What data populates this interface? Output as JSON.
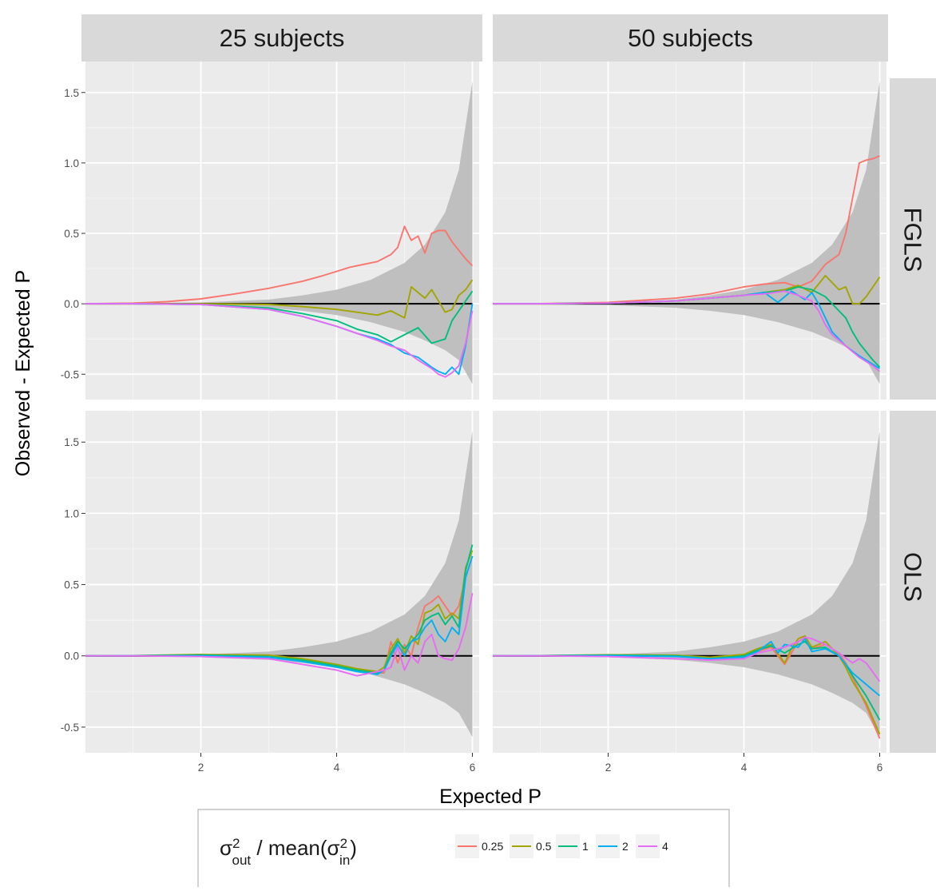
{
  "chart_data": {
    "type": "line",
    "xlabel": "Expected P",
    "ylabel": "Observed - Expected P",
    "xlim": [
      0.3,
      6.1
    ],
    "ylim": [
      -0.68,
      1.72
    ],
    "x_ticks": [
      {
        "value": 2,
        "label": "2"
      },
      {
        "value": 4,
        "label": "4"
      },
      {
        "value": 6,
        "label": "6"
      }
    ],
    "y_ticks": [
      {
        "value": -0.5,
        "label": "-0.5"
      },
      {
        "value": 0.0,
        "label": "0.0"
      },
      {
        "value": 0.5,
        "label": "0.5"
      },
      {
        "value": 1.0,
        "label": "1.0"
      },
      {
        "value": 1.5,
        "label": "1.5"
      }
    ],
    "column_facets": [
      "25 subjects",
      "50 subjects"
    ],
    "row_facets": [
      "FGLS",
      "OLS"
    ],
    "legend": {
      "title": {
        "sigma": "σ",
        "sup": "2",
        "sub_out": "out",
        "middle": " / mean(σ",
        "sub_in": "in",
        "close": ")"
      },
      "placement": "bottom",
      "entries": [
        {
          "label": "0.25",
          "color": "#F8766D"
        },
        {
          "label": "0.5",
          "color": "#A3A500"
        },
        {
          "label": "1",
          "color": "#00BF7D"
        },
        {
          "label": "2",
          "color": "#00B0F6"
        },
        {
          "label": "4",
          "color": "#E76BF3"
        }
      ]
    },
    "band": {
      "color": "#bfbfbf",
      "x": [
        0.3,
        1,
        2,
        3,
        3.5,
        4,
        4.5,
        5,
        5.3,
        5.6,
        5.8,
        6
      ],
      "upper": [
        0.0,
        0.003,
        0.01,
        0.03,
        0.06,
        0.1,
        0.17,
        0.29,
        0.42,
        0.65,
        0.95,
        1.58
      ],
      "lower": [
        0.0,
        -0.003,
        -0.01,
        -0.028,
        -0.05,
        -0.08,
        -0.13,
        -0.2,
        -0.26,
        -0.33,
        -0.4,
        -0.57
      ]
    },
    "reference_line": {
      "y": 0,
      "color": "#000000"
    },
    "panels": [
      {
        "column": "25 subjects",
        "row": "FGLS",
        "series": [
          {
            "name": "0.25",
            "x": [
              0.3,
              1,
              1.5,
              2,
              2.5,
              3,
              3.5,
              3.8,
              4,
              4.2,
              4.4,
              4.6,
              4.8,
              4.9,
              5.0,
              5.1,
              5.2,
              5.3,
              5.4,
              5.5,
              5.6,
              5.7,
              5.8,
              5.9,
              6.0
            ],
            "y": [
              0,
              0.005,
              0.015,
              0.035,
              0.07,
              0.11,
              0.16,
              0.2,
              0.23,
              0.26,
              0.28,
              0.3,
              0.35,
              0.4,
              0.55,
              0.45,
              0.48,
              0.36,
              0.5,
              0.52,
              0.52,
              0.44,
              0.38,
              0.32,
              0.27
            ]
          },
          {
            "name": "0.5",
            "x": [
              0.3,
              1,
              2,
              3,
              3.5,
              4,
              4.3,
              4.6,
              4.8,
              5.0,
              5.1,
              5.3,
              5.4,
              5.6,
              5.7,
              5.8,
              5.9,
              6.0
            ],
            "y": [
              0,
              0,
              0,
              -0.005,
              -0.02,
              -0.04,
              -0.06,
              -0.08,
              -0.05,
              -0.1,
              0.12,
              0.04,
              0.1,
              -0.06,
              -0.04,
              0.06,
              0.1,
              0.17
            ]
          },
          {
            "name": "1",
            "x": [
              0.3,
              1,
              2,
              3,
              3.5,
              4,
              4.3,
              4.6,
              4.8,
              5.0,
              5.2,
              5.4,
              5.6,
              5.7,
              5.8,
              5.9,
              6.0
            ],
            "y": [
              0,
              0,
              -0.005,
              -0.03,
              -0.07,
              -0.12,
              -0.18,
              -0.22,
              -0.27,
              -0.22,
              -0.17,
              -0.28,
              -0.25,
              -0.12,
              -0.05,
              0.02,
              0.09
            ]
          },
          {
            "name": "2",
            "x": [
              0.3,
              1,
              2,
              3,
              3.5,
              4,
              4.3,
              4.6,
              4.8,
              5.0,
              5.2,
              5.4,
              5.5,
              5.6,
              5.7,
              5.8,
              5.9,
              6.0
            ],
            "y": [
              0,
              0,
              -0.005,
              -0.04,
              -0.09,
              -0.16,
              -0.21,
              -0.25,
              -0.29,
              -0.35,
              -0.38,
              -0.45,
              -0.48,
              -0.5,
              -0.45,
              -0.5,
              -0.3,
              0.0
            ]
          },
          {
            "name": "4",
            "x": [
              0.3,
              1,
              2,
              3,
              3.5,
              4,
              4.3,
              4.6,
              4.8,
              5.0,
              5.2,
              5.4,
              5.5,
              5.6,
              5.7,
              5.8,
              5.9,
              6.0
            ],
            "y": [
              0,
              0,
              -0.005,
              -0.04,
              -0.09,
              -0.16,
              -0.21,
              -0.26,
              -0.3,
              -0.33,
              -0.4,
              -0.46,
              -0.5,
              -0.52,
              -0.49,
              -0.44,
              -0.28,
              -0.05
            ]
          }
        ]
      },
      {
        "column": "50 subjects",
        "row": "FGLS",
        "series": [
          {
            "name": "0.25",
            "x": [
              0.3,
              1,
              2,
              3,
              3.5,
              4,
              4.3,
              4.6,
              4.8,
              5.0,
              5.2,
              5.4,
              5.5,
              5.6,
              5.7,
              5.8,
              5.9,
              6.0
            ],
            "y": [
              0,
              0.001,
              0.01,
              0.04,
              0.07,
              0.12,
              0.14,
              0.15,
              0.12,
              0.16,
              0.28,
              0.35,
              0.5,
              0.75,
              1.0,
              1.02,
              1.03,
              1.05
            ]
          },
          {
            "name": "0.5",
            "x": [
              0.3,
              1,
              2,
              3,
              3.5,
              4,
              4.3,
              4.6,
              4.8,
              5.0,
              5.2,
              5.4,
              5.5,
              5.6,
              5.7,
              5.8,
              5.9,
              6.0
            ],
            "y": [
              0,
              0,
              0.005,
              0.02,
              0.04,
              0.06,
              0.08,
              0.1,
              0.13,
              0.08,
              0.2,
              0.1,
              0.12,
              0.0,
              0.0,
              0.05,
              0.12,
              0.19
            ]
          },
          {
            "name": "1",
            "x": [
              0.3,
              1,
              2,
              3,
              3.5,
              4,
              4.3,
              4.6,
              4.8,
              5.0,
              5.2,
              5.4,
              5.5,
              5.6,
              5.7,
              5.8,
              5.9,
              6.0
            ],
            "y": [
              0,
              0,
              0.005,
              0.02,
              0.04,
              0.06,
              0.08,
              0.09,
              0.12,
              0.1,
              0.05,
              -0.05,
              -0.1,
              -0.2,
              -0.28,
              -0.34,
              -0.4,
              -0.45
            ]
          },
          {
            "name": "2",
            "x": [
              0.3,
              1,
              2,
              3,
              3.5,
              4,
              4.3,
              4.5,
              4.7,
              4.9,
              5.0,
              5.1,
              5.2,
              5.3,
              5.5,
              5.7,
              5.9,
              6.0
            ],
            "y": [
              0,
              0,
              0.005,
              0.02,
              0.04,
              0.06,
              0.08,
              0.01,
              0.09,
              0.03,
              0.08,
              0.0,
              -0.1,
              -0.2,
              -0.3,
              -0.37,
              -0.43,
              -0.46
            ]
          },
          {
            "name": "4",
            "x": [
              0.3,
              1,
              2,
              3,
              3.5,
              4,
              4.3,
              4.6,
              4.8,
              5.0,
              5.1,
              5.2,
              5.3,
              5.5,
              5.7,
              5.9,
              6.0
            ],
            "y": [
              0,
              0,
              0.005,
              0.02,
              0.04,
              0.06,
              0.07,
              0.09,
              0.06,
              0.02,
              -0.05,
              -0.15,
              -0.22,
              -0.3,
              -0.38,
              -0.44,
              -0.48
            ]
          }
        ]
      },
      {
        "column": "25 subjects",
        "row": "OLS",
        "series": [
          {
            "name": "0.25",
            "x": [
              0.3,
              1,
              2,
              3,
              3.5,
              4,
              4.3,
              4.6,
              4.7,
              4.8,
              4.9,
              5.0,
              5.1,
              5.2,
              5.3,
              5.4,
              5.5,
              5.6,
              5.7,
              5.8,
              5.9,
              6.0
            ],
            "y": [
              0,
              0.002,
              0.005,
              0.0,
              -0.03,
              -0.07,
              -0.1,
              -0.12,
              -0.12,
              0.1,
              -0.05,
              0.08,
              0.0,
              0.2,
              0.35,
              0.38,
              0.42,
              0.35,
              0.28,
              0.35,
              0.55,
              0.7
            ]
          },
          {
            "name": "0.5",
            "x": [
              0.3,
              1,
              2,
              3,
              3.5,
              4,
              4.3,
              4.6,
              4.7,
              4.8,
              4.9,
              5.0,
              5.1,
              5.2,
              5.3,
              5.4,
              5.5,
              5.6,
              5.7,
              5.8,
              5.9,
              6.0
            ],
            "y": [
              0,
              0.002,
              0.01,
              0.005,
              -0.02,
              -0.06,
              -0.09,
              -0.11,
              -0.08,
              0.05,
              0.12,
              0.02,
              0.14,
              0.08,
              0.3,
              0.32,
              0.36,
              0.26,
              0.3,
              0.26,
              0.62,
              0.74
            ]
          },
          {
            "name": "1",
            "x": [
              0.3,
              1,
              2,
              3,
              3.5,
              4,
              4.3,
              4.6,
              4.7,
              4.8,
              4.9,
              5.0,
              5.1,
              5.2,
              5.3,
              5.4,
              5.5,
              5.6,
              5.7,
              5.8,
              5.9,
              6.0
            ],
            "y": [
              0,
              0.001,
              0.005,
              -0.005,
              -0.03,
              -0.07,
              -0.1,
              -0.12,
              -0.1,
              0.02,
              0.1,
              0.05,
              0.1,
              0.15,
              0.25,
              0.28,
              0.3,
              0.22,
              0.28,
              0.2,
              0.6,
              0.78
            ]
          },
          {
            "name": "2",
            "x": [
              0.3,
              1,
              2,
              3,
              3.5,
              4,
              4.3,
              4.6,
              4.7,
              4.8,
              4.9,
              5.0,
              5.1,
              5.2,
              5.3,
              5.4,
              5.5,
              5.6,
              5.7,
              5.8,
              5.9,
              6.0
            ],
            "y": [
              0,
              0.001,
              0.0,
              -0.01,
              -0.04,
              -0.08,
              -0.11,
              -0.13,
              -0.1,
              0.0,
              0.08,
              0.0,
              0.1,
              0.12,
              0.2,
              0.25,
              0.15,
              0.1,
              0.2,
              0.15,
              0.55,
              0.7
            ]
          },
          {
            "name": "4",
            "x": [
              0.3,
              1,
              2,
              3,
              3.5,
              4,
              4.3,
              4.6,
              4.7,
              4.8,
              4.9,
              5.0,
              5.1,
              5.2,
              5.3,
              5.4,
              5.5,
              5.6,
              5.7,
              5.8,
              5.9,
              6.0
            ],
            "y": [
              0,
              0.0,
              -0.005,
              -0.02,
              -0.06,
              -0.1,
              -0.14,
              -0.11,
              -0.1,
              -0.08,
              0.06,
              -0.1,
              0.0,
              -0.05,
              0.1,
              0.15,
              0.0,
              -0.02,
              -0.03,
              0.05,
              0.2,
              0.44
            ]
          }
        ]
      },
      {
        "column": "50 subjects",
        "row": "OLS",
        "series": [
          {
            "name": "0.25",
            "x": [
              0.3,
              1,
              2,
              3,
              3.5,
              4,
              4.2,
              4.4,
              4.6,
              4.8,
              4.9,
              5.0,
              5.2,
              5.4,
              5.5,
              5.6,
              5.8,
              6.0
            ],
            "y": [
              0,
              0.002,
              0.005,
              0.0,
              -0.02,
              0.0,
              0.03,
              0.06,
              -0.06,
              0.1,
              0.12,
              0.05,
              0.08,
              0.02,
              -0.05,
              -0.15,
              -0.35,
              -0.58
            ]
          },
          {
            "name": "0.5",
            "x": [
              0.3,
              1,
              2,
              3,
              3.5,
              4,
              4.2,
              4.4,
              4.6,
              4.7,
              4.8,
              4.9,
              5.0,
              5.2,
              5.4,
              5.5,
              5.6,
              5.8,
              6.0
            ],
            "y": [
              0,
              0.002,
              0.008,
              0.004,
              -0.01,
              0.01,
              0.05,
              0.08,
              -0.05,
              0.05,
              0.12,
              0.14,
              0.06,
              0.1,
              0.0,
              -0.08,
              -0.18,
              -0.33,
              -0.55
            ]
          },
          {
            "name": "1",
            "x": [
              0.3,
              1,
              2,
              3,
              3.5,
              4,
              4.2,
              4.4,
              4.6,
              4.8,
              4.9,
              5.0,
              5.2,
              5.4,
              5.5,
              5.6,
              5.8,
              6.0
            ],
            "y": [
              0,
              0.001,
              0.005,
              0.0,
              -0.02,
              0.0,
              0.04,
              0.07,
              0.02,
              0.08,
              0.1,
              0.05,
              0.06,
              0.0,
              -0.06,
              -0.14,
              -0.28,
              -0.45
            ]
          },
          {
            "name": "2",
            "x": [
              0.3,
              1,
              2,
              3,
              3.5,
              4,
              4.2,
              4.4,
              4.5,
              4.6,
              4.8,
              4.9,
              5.0,
              5.2,
              5.4,
              5.6,
              5.8,
              6.0
            ],
            "y": [
              0,
              0.001,
              0.002,
              -0.005,
              -0.02,
              -0.01,
              0.03,
              0.1,
              0.02,
              0.08,
              0.06,
              0.12,
              0.03,
              0.05,
              0.0,
              -0.12,
              -0.2,
              -0.28
            ]
          },
          {
            "name": "4",
            "x": [
              0.3,
              1,
              2,
              3,
              3.5,
              4,
              4.2,
              4.4,
              4.6,
              4.8,
              4.9,
              5.0,
              5.2,
              5.4,
              5.6,
              5.7,
              5.8,
              6.0
            ],
            "y": [
              0,
              0.0,
              -0.005,
              -0.02,
              -0.03,
              -0.02,
              0.02,
              0.04,
              0.06,
              0.1,
              0.13,
              0.12,
              0.08,
              0.02,
              -0.05,
              -0.02,
              -0.05,
              -0.18
            ]
          }
        ]
      }
    ]
  }
}
